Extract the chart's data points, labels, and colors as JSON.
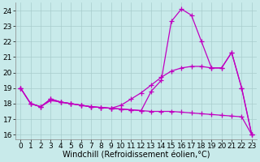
{
  "series": [
    {
      "name": "line_decreasing",
      "x": [
        0,
        1,
        2,
        3,
        4,
        5,
        6,
        7,
        8,
        9,
        10,
        11,
        12,
        13,
        14,
        15,
        16,
        17,
        18,
        19,
        20,
        21,
        22,
        23
      ],
      "y": [
        19,
        18,
        17.8,
        18.2,
        18.1,
        18.0,
        17.9,
        17.8,
        17.75,
        17.7,
        17.65,
        17.6,
        17.55,
        17.5,
        17.5,
        17.5,
        17.45,
        17.4,
        17.35,
        17.3,
        17.25,
        17.2,
        17.15,
        16.0
      ]
    },
    {
      "name": "line_middle",
      "x": [
        0,
        1,
        2,
        3,
        4,
        5,
        6,
        7,
        8,
        9,
        10,
        11,
        12,
        13,
        14,
        15,
        16,
        17,
        18,
        19,
        20,
        21,
        22,
        23
      ],
      "y": [
        19,
        18,
        17.8,
        18.3,
        18.1,
        18.0,
        17.9,
        17.8,
        17.75,
        17.7,
        17.9,
        18.3,
        18.7,
        19.2,
        19.7,
        20.1,
        20.3,
        20.4,
        20.4,
        20.3,
        20.3,
        21.3,
        19.0,
        16.0
      ]
    },
    {
      "name": "line_spike",
      "x": [
        0,
        1,
        2,
        3,
        4,
        5,
        6,
        7,
        8,
        9,
        10,
        11,
        12,
        13,
        14,
        15,
        16,
        17,
        18,
        19,
        20,
        21,
        22,
        23
      ],
      "y": [
        19,
        18,
        17.8,
        18.3,
        18.1,
        18.0,
        17.9,
        17.8,
        17.75,
        17.7,
        17.65,
        17.6,
        17.55,
        18.8,
        19.5,
        23.3,
        24.1,
        23.7,
        22.0,
        20.3,
        20.3,
        21.3,
        19.0,
        16.0
      ]
    }
  ],
  "xlim_min": -0.5,
  "xlim_max": 23.5,
  "ylim_min": 15.7,
  "ylim_max": 24.5,
  "yticks": [
    16,
    17,
    18,
    19,
    20,
    21,
    22,
    23,
    24
  ],
  "xticks": [
    0,
    1,
    2,
    3,
    4,
    5,
    6,
    7,
    8,
    9,
    10,
    11,
    12,
    13,
    14,
    15,
    16,
    17,
    18,
    19,
    20,
    21,
    22,
    23
  ],
  "xlabel": "Windchill (Refroidissement éolien,°C)",
  "background_color": "#c8eaea",
  "line_color": "#c000c0",
  "grid_color": "#a8cccc",
  "marker": "+",
  "marker_size": 4,
  "line_width": 0.9,
  "tick_fontsize": 6.5,
  "xlabel_fontsize": 7
}
